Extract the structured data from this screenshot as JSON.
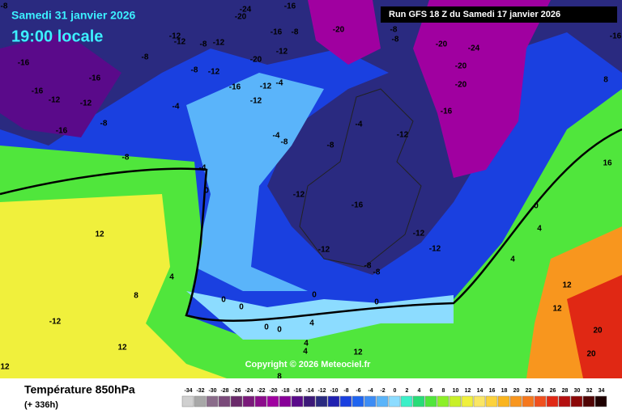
{
  "header": {
    "date": "Samedi 31 janvier 2026",
    "time": "19:00 locale",
    "run": "Run GFS 18 Z du Samedi 17 janvier 2026"
  },
  "footer": {
    "title": "Température 850hPa",
    "lead": "(+ 336h)",
    "copyright": "Copyright © 2026 Meteociel.fr"
  },
  "legend": {
    "values": [
      -34,
      -32,
      -30,
      -28,
      -26,
      -24,
      -22,
      -20,
      -18,
      -16,
      -14,
      -12,
      -10,
      -8,
      -6,
      -4,
      -2,
      0,
      2,
      4,
      6,
      8,
      10,
      12,
      14,
      16,
      18,
      20,
      22,
      24,
      26,
      28,
      30,
      32,
      34
    ],
    "colors": [
      "#d0d0d0",
      "#a8a8a8",
      "#8a6c8a",
      "#7a4a7a",
      "#6a2a6a",
      "#7a1a7a",
      "#8c0c8c",
      "#a000a0",
      "#880098",
      "#5a0a8a",
      "#3c1878",
      "#2a2a80",
      "#2020b0",
      "#1a40e0",
      "#1e64f0",
      "#3c8cf5",
      "#5ab4fa",
      "#8cdcff",
      "#3cf0c8",
      "#28dc78",
      "#50e63c",
      "#8cf028",
      "#c8f028",
      "#f0f03c",
      "#fae664",
      "#fcd23c",
      "#fab41e",
      "#f8961e",
      "#f5781e",
      "#f0501e",
      "#e02814",
      "#b41010",
      "#8c0808",
      "#500404",
      "#1e0000"
    ]
  },
  "map_labels": [
    -8,
    -16,
    -24,
    -20,
    -12,
    -12,
    -8,
    -12,
    -16,
    -8,
    -20,
    -8,
    -8,
    -20,
    -24,
    -16,
    -16,
    -16,
    -8,
    -12,
    -20,
    -12,
    -8,
    -16,
    -12,
    -4,
    -16,
    -12,
    -12,
    -4,
    -12,
    -16,
    -20,
    -20,
    -8,
    -16,
    -4,
    -8,
    -4,
    -8,
    -12,
    -8,
    -4,
    0,
    -12,
    -16,
    12,
    -12,
    -12,
    -12,
    -8,
    -8,
    4,
    8,
    0,
    0,
    0,
    0,
    -12,
    12,
    0,
    0,
    4,
    4,
    4,
    12,
    8,
    12,
    16,
    20,
    20,
    12,
    12,
    4,
    8,
    4,
    0
  ]
}
